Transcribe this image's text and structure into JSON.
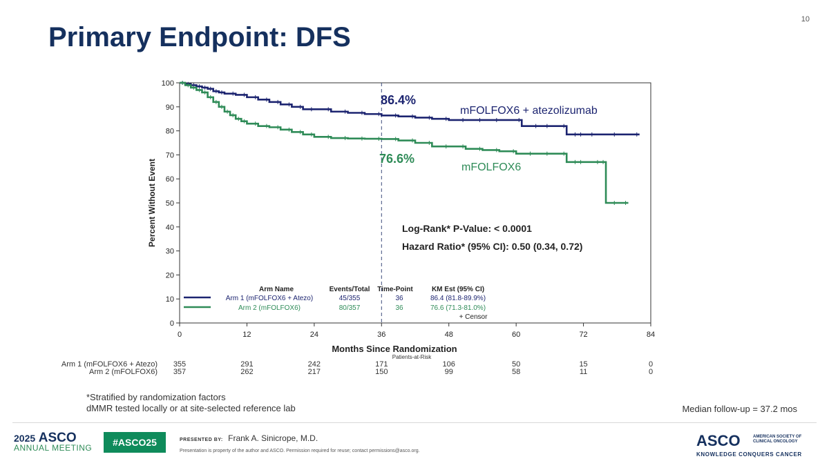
{
  "page_number": "10",
  "title": "Primary Endpoint: DFS",
  "chart_data": {
    "type": "line",
    "step": true,
    "xlabel": "Months Since Randomization",
    "ylabel": "Percent Without Event",
    "xlim": [
      0,
      84
    ],
    "ylim": [
      0,
      100
    ],
    "xticks": [
      0,
      12,
      24,
      36,
      48,
      60,
      72,
      84
    ],
    "yticks": [
      0,
      10,
      20,
      30,
      40,
      50,
      60,
      70,
      80,
      90,
      100
    ],
    "reference_line_x": 36,
    "grid": false,
    "series": [
      {
        "name": "mFOLFOX6 + atezolizumab",
        "color": "#1c2470",
        "x": [
          0,
          1,
          2,
          3,
          4,
          5,
          6,
          7,
          8,
          10,
          12,
          14,
          16,
          18,
          20,
          22,
          24,
          27,
          30,
          33,
          36,
          39,
          42,
          45,
          48,
          51,
          54,
          57,
          61,
          64,
          66,
          69,
          71,
          72,
          74,
          78,
          82
        ],
        "y": [
          100,
          99.5,
          99,
          98.5,
          98,
          97.5,
          96.5,
          96,
          95.5,
          95,
          94,
          93,
          92,
          91,
          90,
          89,
          89,
          88,
          87.5,
          87,
          86.4,
          86,
          85.5,
          85,
          84.5,
          84.5,
          84.5,
          84.5,
          82,
          82,
          82,
          78.5,
          78.5,
          78.5,
          78.5,
          78.5,
          78.5
        ],
        "label_value": "86.4%"
      },
      {
        "name": "mFOLFOX6",
        "color": "#2e8b57",
        "x": [
          0,
          1,
          2,
          3,
          4,
          5,
          6,
          7,
          8,
          9,
          10,
          11,
          12,
          14,
          16,
          18,
          20,
          22,
          24,
          27,
          30,
          33,
          36,
          39,
          42,
          45,
          48,
          51,
          54,
          57,
          60,
          63,
          66,
          69,
          71,
          72,
          75,
          76,
          78,
          80
        ],
        "y": [
          100,
          99,
          98,
          97,
          96,
          94,
          92,
          90,
          88,
          86.5,
          85,
          84,
          83,
          82,
          81.5,
          80.5,
          79.5,
          78.5,
          77.5,
          77,
          76.8,
          76.7,
          76.6,
          76,
          75,
          73.5,
          73.5,
          72.5,
          72,
          71.5,
          70.5,
          70.5,
          70.5,
          67,
          67,
          67,
          67,
          50,
          50,
          50
        ],
        "label_value": "76.6%"
      }
    ],
    "annotations": {
      "logrank": "Log-Rank* P-Value: < 0.0001",
      "hazard": "Hazard Ratio* (95% CI): 0.50 (0.34, 0.72)"
    },
    "legend_table": {
      "headers": [
        "Arm Name",
        "Events/Total",
        "Time-Point",
        "KM Est (95% CI)"
      ],
      "rows": [
        [
          "Arm 1 (mFOLFOX6 + Atezo)",
          "45/355",
          "36",
          "86.4 (81.8-89.9%)"
        ],
        [
          "Arm 2 (mFOLFOX6)",
          "80/357",
          "36",
          "76.6 (71.3-81.0%)"
        ]
      ],
      "censor_label": "+ Censor"
    },
    "at_risk": {
      "title": "Patients-at-Risk",
      "rows": [
        {
          "label": "Arm 1 (mFOLFOX6 + Atezo)",
          "values": [
            "355",
            "291",
            "242",
            "171",
            "106",
            "50",
            "15",
            "0"
          ]
        },
        {
          "label": "Arm 2 (mFOLFOX6)",
          "values": [
            "357",
            "262",
            "217",
            "150",
            "99",
            "58",
            "11",
            "0"
          ]
        }
      ]
    }
  },
  "footnotes": [
    "*Stratified by randomization factors",
    "dMMR tested locally or at site-selected reference lab"
  ],
  "followup": "Median follow-up = 37.2 mos",
  "footer": {
    "meeting_year": "2025",
    "meeting_name": "ASCO",
    "meeting_sub": "ANNUAL MEETING",
    "hashtag": "#ASCO25",
    "presented_by_label": "PRESENTED BY:",
    "presenter": "Frank A. Sinicrope, M.D.",
    "disclaimer": "Presentation is property of the author and ASCO. Permission required for reuse; contact permissions@asco.org.",
    "logo_word": "ASCO",
    "logo_society": "AMERICAN SOCIETY OF CLINICAL ONCOLOGY",
    "logo_tagline": "KNOWLEDGE CONQUERS CANCER"
  }
}
